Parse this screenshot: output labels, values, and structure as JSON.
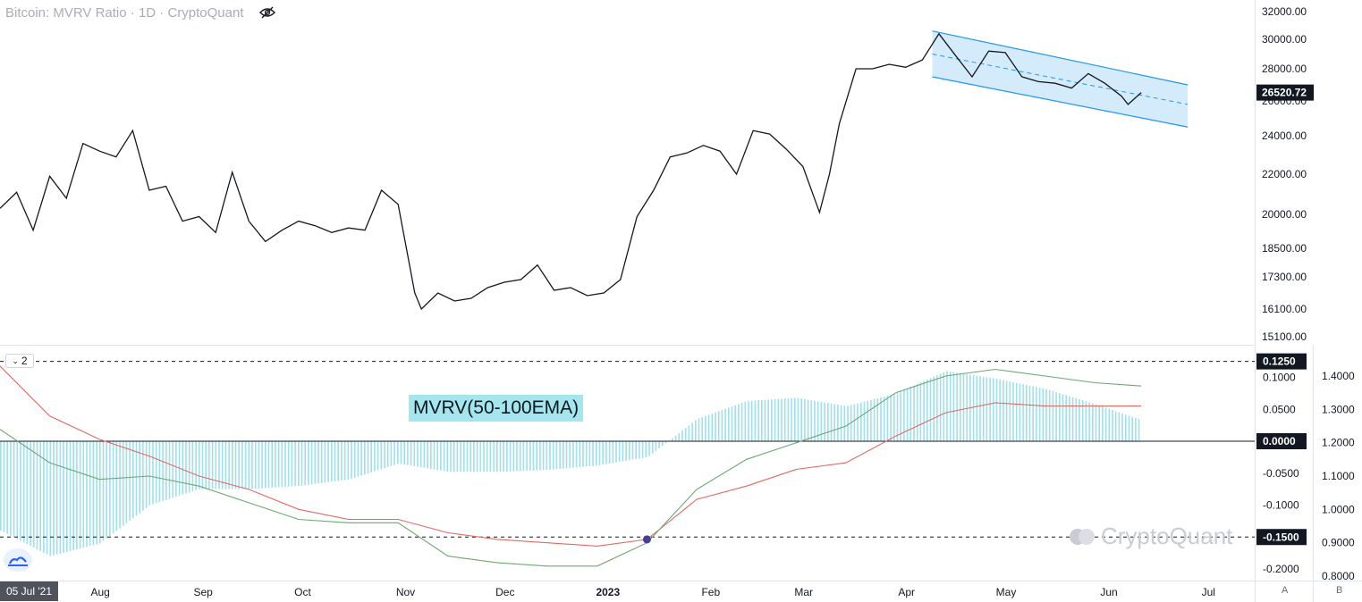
{
  "header": {
    "title": "Bitcoin: MVRV Ratio · 1D · CryptoQuant"
  },
  "indicator": {
    "toggle_label": "2",
    "name": "MVRV(50-100EMA)"
  },
  "watermark": "CryptoQuant",
  "axis_buttons": {
    "auto": "A",
    "log": "B"
  },
  "date_tag": "05 Jul '21",
  "colors": {
    "price_line": "#131722",
    "histogram": "#9fe0ea",
    "ema_fast": "#6ca86f",
    "ema_slow": "#e06b62",
    "channel_fill": "#cce7fb",
    "channel_line": "#2196f3",
    "crossover_marker": "#4a3c9c"
  },
  "chart_data": [
    {
      "type": "line",
      "name": "price",
      "y_axis_ticks": [
        "32000.00",
        "30000.00",
        "28000.00",
        "26000.00",
        "24000.00",
        "22000.00",
        "20000.00",
        "18500.00",
        "17300.00",
        "16100.00",
        "15100.00"
      ],
      "last_value_label": "26520.72",
      "x_tick_labels": [
        "Aug",
        "Sep",
        "Oct",
        "Nov",
        "Dec",
        "2023",
        "Feb",
        "Mar",
        "Apr",
        "May",
        "Jun",
        "Jul"
      ],
      "x": [
        "2022-07-05",
        "2022-07-10",
        "2022-07-15",
        "2022-07-20",
        "2022-07-25",
        "2022-07-30",
        "2022-08-04",
        "2022-08-09",
        "2022-08-14",
        "2022-08-19",
        "2022-08-24",
        "2022-08-29",
        "2022-09-03",
        "2022-09-08",
        "2022-09-13",
        "2022-09-18",
        "2022-09-23",
        "2022-09-28",
        "2022-10-03",
        "2022-10-08",
        "2022-10-13",
        "2022-10-18",
        "2022-10-23",
        "2022-10-28",
        "2022-11-02",
        "2022-11-07",
        "2022-11-09",
        "2022-11-14",
        "2022-11-19",
        "2022-11-24",
        "2022-11-29",
        "2022-12-04",
        "2022-12-09",
        "2022-12-14",
        "2022-12-19",
        "2022-12-24",
        "2022-12-29",
        "2023-01-03",
        "2023-01-08",
        "2023-01-13",
        "2023-01-18",
        "2023-01-23",
        "2023-01-28",
        "2023-02-02",
        "2023-02-07",
        "2023-02-12",
        "2023-02-17",
        "2023-02-22",
        "2023-02-27",
        "2023-03-04",
        "2023-03-09",
        "2023-03-12",
        "2023-03-15",
        "2023-03-20",
        "2023-03-25",
        "2023-03-30",
        "2023-04-04",
        "2023-04-09",
        "2023-04-14",
        "2023-04-19",
        "2023-04-24",
        "2023-04-29",
        "2023-05-04",
        "2023-05-09",
        "2023-05-14",
        "2023-05-19",
        "2023-05-24",
        "2023-05-29",
        "2023-06-03",
        "2023-06-08",
        "2023-06-10",
        "2023-06-14"
      ],
      "values": [
        20300,
        21100,
        19300,
        21900,
        20800,
        23600,
        23200,
        22900,
        24300,
        21200,
        21400,
        19700,
        19900,
        19200,
        22100,
        19700,
        18800,
        19300,
        19700,
        19500,
        19200,
        19400,
        19300,
        21200,
        20500,
        16700,
        16100,
        16700,
        16400,
        16500,
        16900,
        17100,
        17200,
        17800,
        16800,
        16900,
        16600,
        16700,
        17200,
        19900,
        21200,
        22900,
        23100,
        23500,
        23200,
        22000,
        24300,
        24100,
        23300,
        22400,
        20100,
        22000,
        24700,
        28000,
        28000,
        28300,
        28100,
        28600,
        30400,
        28900,
        27500,
        29200,
        29100,
        27500,
        27200,
        27100,
        26800,
        27700,
        27100,
        26300,
        25800,
        26520
      ],
      "ylim": [
        15000,
        32000
      ],
      "channel": {
        "upper": [
          {
            "x": "2023-04-12",
            "y": 30600
          },
          {
            "x": "2023-06-28",
            "y": 27000
          }
        ],
        "middle": [
          {
            "x": "2023-04-12",
            "y": 29000
          },
          {
            "x": "2023-06-28",
            "y": 25800
          }
        ],
        "lower": [
          {
            "x": "2023-04-12",
            "y": 27500
          },
          {
            "x": "2023-06-28",
            "y": 24500
          }
        ]
      }
    },
    {
      "type": "bar",
      "name": "MVRV(50-100EMA)",
      "y_axis_ticks_left": [
        "0.1000",
        "0.0500",
        "0.0000",
        "-0.0500",
        "-0.1000",
        "-0.2000"
      ],
      "y_axis_ticks_right": [
        "1.4000",
        "1.3000",
        "1.2000",
        "1.1000",
        "1.0000",
        "0.9000",
        "0.8000"
      ],
      "level_lines": [
        {
          "value": 0.125,
          "label": "0.1250",
          "style": "dashed"
        },
        {
          "value": 0.0,
          "label": "0.0000",
          "style": "solid"
        },
        {
          "value": -0.15,
          "label": "-0.1500",
          "style": "dashed"
        }
      ],
      "histogram_x": [
        "2022-07-05",
        "2022-07-20",
        "2022-08-04",
        "2022-08-19",
        "2022-09-03",
        "2022-09-18",
        "2022-10-03",
        "2022-10-18",
        "2022-11-02",
        "2022-11-17",
        "2022-12-02",
        "2022-12-17",
        "2023-01-01",
        "2023-01-16",
        "2023-01-31",
        "2023-02-15",
        "2023-03-02",
        "2023-03-17",
        "2023-04-01",
        "2023-04-16",
        "2023-05-01",
        "2023-05-16",
        "2023-05-31",
        "2023-06-14"
      ],
      "histogram_values": [
        -0.14,
        -0.18,
        -0.16,
        -0.1,
        -0.075,
        -0.075,
        -0.07,
        -0.06,
        -0.035,
        -0.048,
        -0.048,
        -0.045,
        -0.038,
        -0.025,
        0.035,
        0.063,
        0.068,
        0.055,
        0.075,
        0.11,
        0.098,
        0.082,
        0.058,
        0.033
      ],
      "ema_fast_values": [
        1.24,
        1.14,
        1.09,
        1.1,
        1.07,
        1.02,
        0.97,
        0.96,
        0.96,
        0.86,
        0.84,
        0.83,
        0.83,
        0.9,
        1.06,
        1.15,
        1.2,
        1.25,
        1.35,
        1.4,
        1.42,
        1.4,
        1.38,
        1.37
      ],
      "ema_slow_values": [
        1.43,
        1.28,
        1.21,
        1.16,
        1.1,
        1.06,
        1.0,
        0.97,
        0.97,
        0.93,
        0.91,
        0.9,
        0.89,
        0.91,
        1.03,
        1.07,
        1.12,
        1.14,
        1.22,
        1.29,
        1.32,
        1.31,
        1.31,
        1.31
      ],
      "crossover": {
        "x": "2023-01-16",
        "y": 0.91
      }
    }
  ]
}
